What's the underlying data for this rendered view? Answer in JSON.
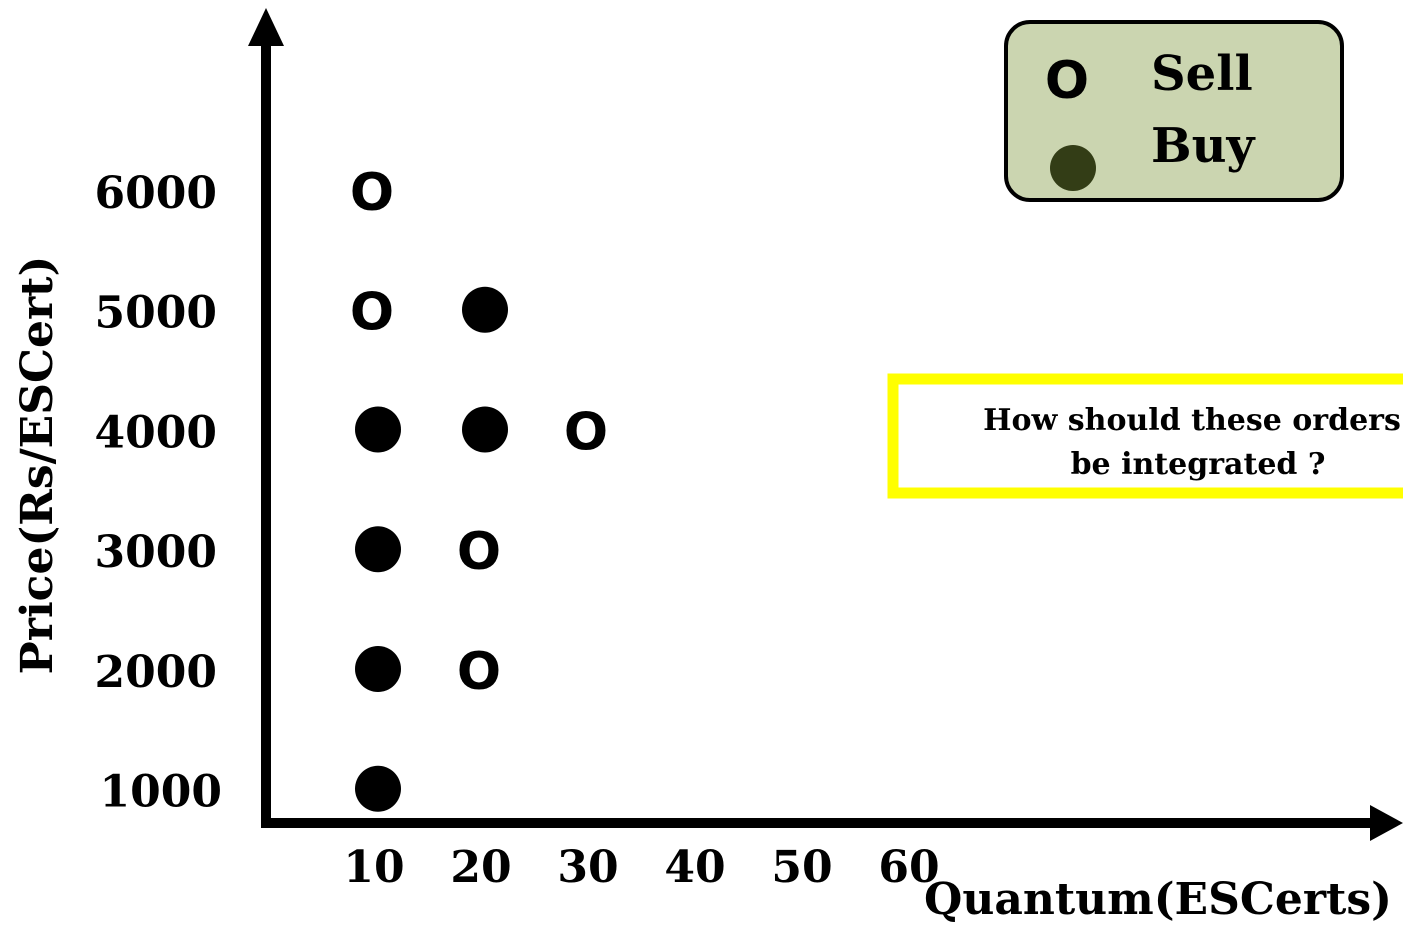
{
  "chart_data": {
    "type": "scatter",
    "xlabel": "Quantum(ESCerts)",
    "ylabel": "Price(Rs/ESCert)",
    "x_ticks": [
      10,
      20,
      30,
      40,
      50,
      60
    ],
    "y_ticks": [
      1000,
      2000,
      3000,
      4000,
      5000,
      6000
    ],
    "series": [
      {
        "name": "Sell",
        "marker": "O",
        "color": "#000000",
        "points": [
          {
            "x": 10,
            "y": 6000
          },
          {
            "x": 10,
            "y": 5000
          },
          {
            "x": 30,
            "y": 4000
          },
          {
            "x": 20,
            "y": 3000
          },
          {
            "x": 20,
            "y": 2000
          }
        ]
      },
      {
        "name": "Buy",
        "marker": "filled-circle",
        "color": "#000000",
        "points": [
          {
            "x": 20,
            "y": 5000
          },
          {
            "x": 10,
            "y": 4000
          },
          {
            "x": 20,
            "y": 4000
          },
          {
            "x": 10,
            "y": 3000
          },
          {
            "x": 10,
            "y": 2000
          },
          {
            "x": 10,
            "y": 1000
          }
        ]
      }
    ],
    "legend": {
      "placement": "top-right",
      "background": "#cbd5b0",
      "marker_color": "#333d16",
      "sell_label": "Sell",
      "buy_label": "Buy",
      "sell_symbol": "O"
    },
    "annotation": {
      "line1": "How should these orders",
      "line2": "be integrated ?",
      "border_color": "#ffff00"
    },
    "grid": false
  }
}
